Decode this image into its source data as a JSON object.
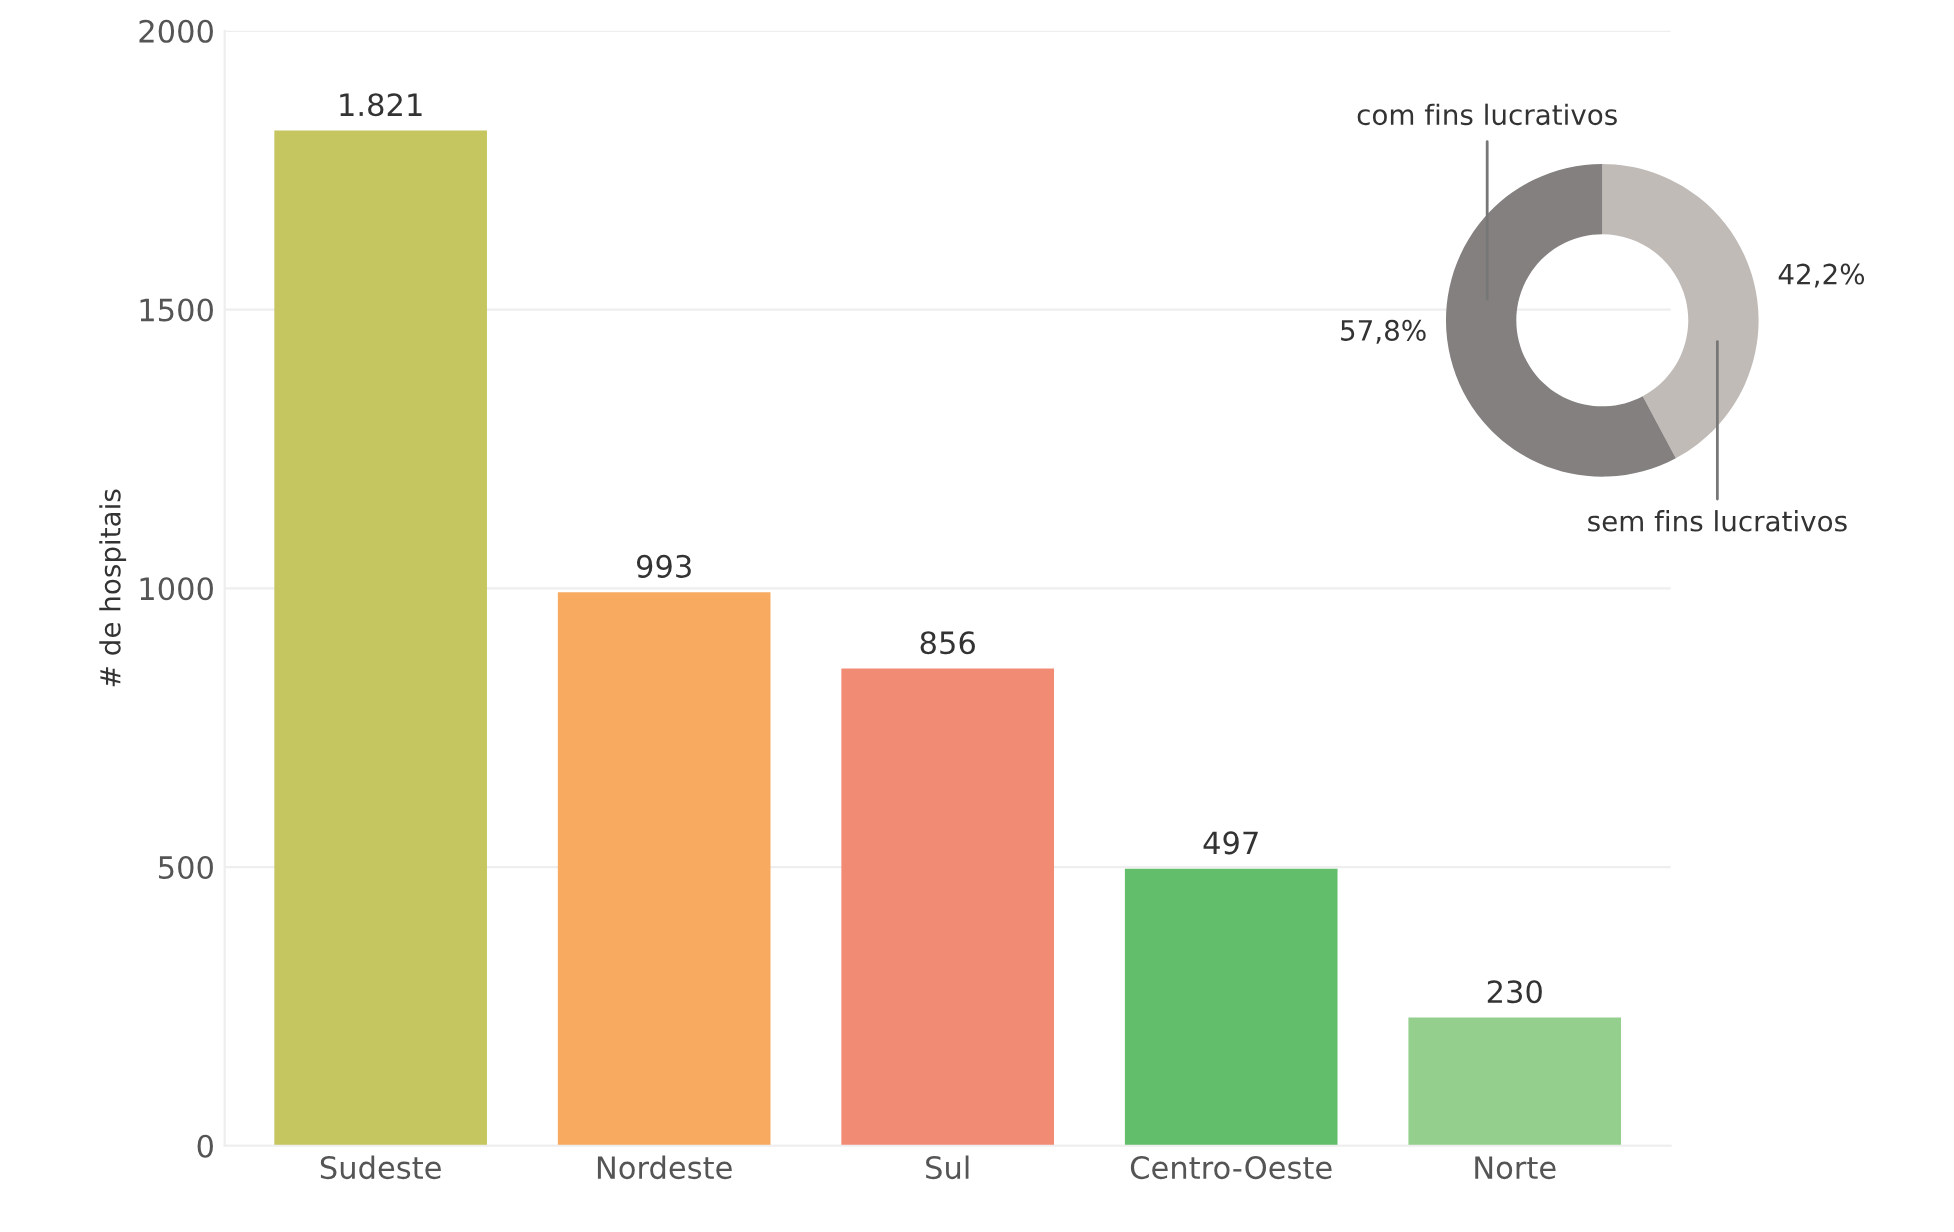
{
  "chart_data": [
    {
      "type": "bar",
      "ylabel": "# de hospitais",
      "categories": [
        "Sudeste",
        "Nordeste",
        "Sul",
        "Centro-Oeste",
        "Norte"
      ],
      "values": [
        1821,
        993,
        856,
        497,
        230
      ],
      "colors": [
        "#c5c660",
        "#f7aa60",
        "#f28b74",
        "#62be6a",
        "#94cf8d"
      ],
      "value_labels": [
        "1.821",
        "993",
        "856",
        "497",
        "230"
      ],
      "ylim": [
        0,
        2000
      ],
      "yticks": [
        0,
        500,
        1000,
        1500,
        2000
      ],
      "grid": "y"
    },
    {
      "type": "donut",
      "categories": [
        "sem fins lucrativos",
        "com fins lucrativos"
      ],
      "values": [
        42.2,
        57.8
      ],
      "colors": [
        "#c1bbb7",
        "#858080"
      ],
      "value_labels": [
        "42,2%",
        "57,8%"
      ]
    }
  ]
}
